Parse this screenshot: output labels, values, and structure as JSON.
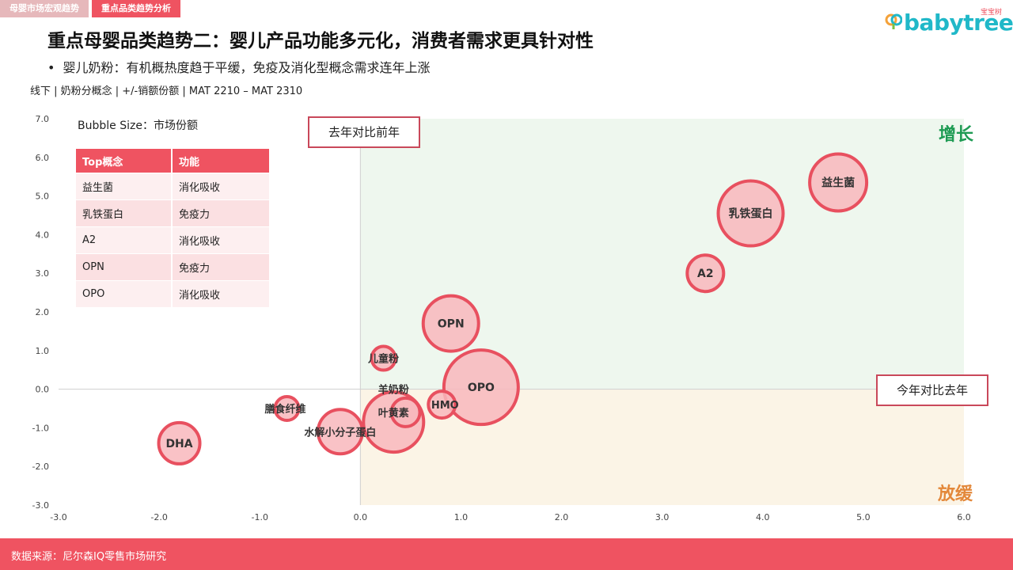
{
  "tabs": [
    "母婴市场宏观趋势",
    "重点品类趋势分析"
  ],
  "logo": {
    "text": "babytree",
    "small": "宝宝树",
    "color": "#20b8c8"
  },
  "title": "重点母婴品类趋势二：婴儿产品功能多元化，消费者需求更具针对性",
  "bullet": "婴儿奶粉：有机概热度趋于平缓，免疫及消化型概念需求连年上涨",
  "subtitle": "线下 | 奶粉分概念 | +/-销额份额 | MAT 2210 – MAT 2310",
  "bubble_note": "Bubble Size：市场份额",
  "legend_table": {
    "headers": [
      "Top概念",
      "功能"
    ],
    "rows": [
      [
        "益生菌",
        "消化吸收"
      ],
      [
        "乳铁蛋白",
        "免疫力"
      ],
      [
        "A2",
        "消化吸收"
      ],
      [
        "OPN",
        "免疫力"
      ],
      [
        "OPO",
        "消化吸收"
      ]
    ]
  },
  "box_top": "去年对比前年",
  "box_right": "今年对比去年",
  "quadrant_up": "增长",
  "quadrant_down": "放缓",
  "footer": "数据来源：尼尔森IQ零售市场研究",
  "colors": {
    "accent": "#ef5361",
    "bubble_fill": "#f8b7bc",
    "bubble_stroke": "#e8505f",
    "growth": "#1e9b53",
    "slowdown": "#e3883a"
  },
  "chart_data": {
    "type": "scatter",
    "xlim": [
      -3.0,
      6.0
    ],
    "ylim": [
      -3.0,
      7.0
    ],
    "xticks": [
      "-3.0",
      "-2.0",
      "-1.0",
      "0.0",
      "1.0",
      "2.0",
      "3.0",
      "4.0",
      "5.0",
      "6.0"
    ],
    "yticks": [
      "7.0",
      "6.0",
      "5.0",
      "4.0",
      "3.0",
      "2.0",
      "1.0",
      "0.0",
      "-1.0",
      "-2.0",
      "-3.0"
    ],
    "grid": false,
    "points": [
      {
        "label": "益生菌",
        "x": 4.75,
        "y": 5.35,
        "size": 36,
        "bold": true
      },
      {
        "label": "乳铁蛋白",
        "x": 3.88,
        "y": 4.55,
        "size": 41,
        "bold": true
      },
      {
        "label": "A2",
        "x": 3.43,
        "y": 3.0,
        "size": 23,
        "bold": true
      },
      {
        "label": "OPN",
        "x": 0.9,
        "y": 1.7,
        "size": 35,
        "bold": true
      },
      {
        "label": "OPO",
        "x": 1.2,
        "y": 0.05,
        "size": 47,
        "bold": true
      },
      {
        "label": "儿童粉",
        "x": 0.23,
        "y": 0.8,
        "size": 15,
        "bold": false
      },
      {
        "label": "羊奶粉",
        "x": 0.33,
        "y": -0.85,
        "size": 38,
        "bold": false
      },
      {
        "label": "叶黄素",
        "x": 0.45,
        "y": -0.6,
        "size": 18,
        "bold": false
      },
      {
        "label": "HMO",
        "x": 0.81,
        "y": -0.4,
        "size": 17,
        "bold": false
      },
      {
        "label": "膳食纤维",
        "x": -0.73,
        "y": -0.5,
        "size": 15,
        "bold": false
      },
      {
        "label": "水解小分子蛋白",
        "x": -0.2,
        "y": -1.1,
        "size": 28,
        "bold": false
      },
      {
        "label": "DHA",
        "x": -1.8,
        "y": -1.4,
        "size": 26,
        "bold": true
      }
    ]
  }
}
